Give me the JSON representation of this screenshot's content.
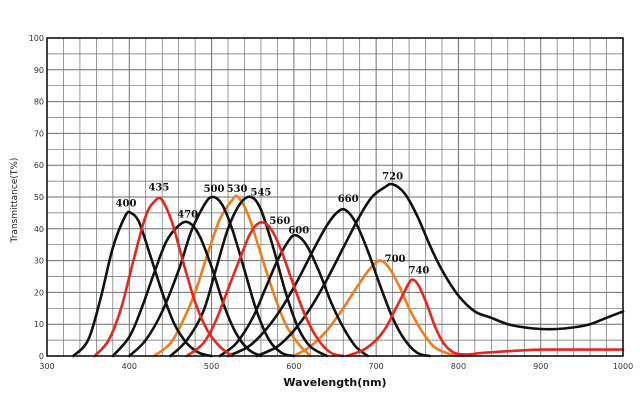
{
  "chart_data": {
    "type": "line",
    "title": "",
    "xlabel": "Wavelength(nm)",
    "ylabel": "Transmittance(T%)",
    "xlim": [
      300,
      1000
    ],
    "ylim": [
      0,
      100
    ],
    "grid": true,
    "x_ticks": [
      300,
      400,
      500,
      600,
      700,
      800,
      900,
      1000
    ],
    "y_ticks": [
      0,
      10,
      20,
      30,
      40,
      50,
      60,
      70,
      80,
      90,
      100
    ],
    "colors": {
      "black": "#111111",
      "red": "#e8261c",
      "orange": "#f07c1a",
      "grid": "#6e6e6e"
    },
    "series": [
      {
        "label": "400",
        "color": "black",
        "points": [
          [
            332,
            0
          ],
          [
            350,
            5
          ],
          [
            365,
            18
          ],
          [
            380,
            34
          ],
          [
            395,
            44
          ],
          [
            402,
            45
          ],
          [
            412,
            42
          ],
          [
            425,
            32
          ],
          [
            440,
            20
          ],
          [
            455,
            10
          ],
          [
            470,
            4
          ],
          [
            485,
            1
          ],
          [
            500,
            0
          ]
        ]
      },
      {
        "label": "435",
        "color": "red",
        "points": [
          [
            358,
            0
          ],
          [
            375,
            5
          ],
          [
            390,
            15
          ],
          [
            405,
            30
          ],
          [
            420,
            44
          ],
          [
            432,
            49
          ],
          [
            440,
            49
          ],
          [
            452,
            42
          ],
          [
            465,
            30
          ],
          [
            480,
            17
          ],
          [
            495,
            8
          ],
          [
            510,
            3
          ],
          [
            525,
            0
          ]
        ]
      },
      {
        "label": "470",
        "color": "black",
        "points": [
          [
            380,
            0
          ],
          [
            400,
            6
          ],
          [
            415,
            15
          ],
          [
            430,
            26
          ],
          [
            445,
            36
          ],
          [
            460,
            41
          ],
          [
            472,
            42
          ],
          [
            485,
            38
          ],
          [
            500,
            28
          ],
          [
            515,
            16
          ],
          [
            530,
            7
          ],
          [
            545,
            2
          ],
          [
            560,
            0
          ]
        ]
      },
      {
        "label": "500",
        "color": "black",
        "points": [
          [
            400,
            0
          ],
          [
            420,
            5
          ],
          [
            440,
            14
          ],
          [
            460,
            27
          ],
          [
            475,
            39
          ],
          [
            490,
            47
          ],
          [
            500,
            50
          ],
          [
            512,
            48
          ],
          [
            525,
            40
          ],
          [
            540,
            27
          ],
          [
            555,
            14
          ],
          [
            570,
            5
          ],
          [
            585,
            1
          ],
          [
            600,
            0
          ]
        ]
      },
      {
        "label": "530",
        "color": "orange",
        "points": [
          [
            430,
            0
          ],
          [
            450,
            4
          ],
          [
            465,
            11
          ],
          [
            480,
            20
          ],
          [
            495,
            32
          ],
          [
            510,
            43
          ],
          [
            525,
            49
          ],
          [
            532,
            50
          ],
          [
            545,
            44
          ],
          [
            560,
            32
          ],
          [
            575,
            20
          ],
          [
            590,
            10
          ],
          [
            605,
            4
          ],
          [
            620,
            0
          ]
        ]
      },
      {
        "label": "545",
        "color": "black",
        "points": [
          [
            450,
            0
          ],
          [
            470,
            5
          ],
          [
            490,
            14
          ],
          [
            505,
            27
          ],
          [
            520,
            40
          ],
          [
            535,
            48
          ],
          [
            548,
            50
          ],
          [
            560,
            46
          ],
          [
            575,
            34
          ],
          [
            590,
            20
          ],
          [
            605,
            9
          ],
          [
            620,
            3
          ],
          [
            640,
            0
          ]
        ]
      },
      {
        "label": "560",
        "color": "red",
        "points": [
          [
            470,
            0
          ],
          [
            490,
            4
          ],
          [
            505,
            11
          ],
          [
            520,
            21
          ],
          [
            535,
            31
          ],
          [
            548,
            39
          ],
          [
            560,
            42
          ],
          [
            572,
            40
          ],
          [
            585,
            33
          ],
          [
            600,
            22
          ],
          [
            615,
            12
          ],
          [
            630,
            5
          ],
          [
            645,
            1
          ],
          [
            660,
            0
          ]
        ]
      },
      {
        "label": "600",
        "color": "black",
        "points": [
          [
            510,
            0
          ],
          [
            530,
            4
          ],
          [
            550,
            12
          ],
          [
            565,
            21
          ],
          [
            580,
            30
          ],
          [
            593,
            36
          ],
          [
            602,
            38
          ],
          [
            615,
            35
          ],
          [
            630,
            27
          ],
          [
            645,
            17
          ],
          [
            660,
            9
          ],
          [
            675,
            3
          ],
          [
            690,
            0
          ]
        ]
      },
      {
        "label": "660",
        "color": "black",
        "points": [
          [
            520,
            0
          ],
          [
            545,
            3
          ],
          [
            565,
            8
          ],
          [
            585,
            15
          ],
          [
            605,
            24
          ],
          [
            625,
            34
          ],
          [
            640,
            41
          ],
          [
            652,
            45
          ],
          [
            662,
            46
          ],
          [
            675,
            42
          ],
          [
            690,
            33
          ],
          [
            705,
            22
          ],
          [
            720,
            12
          ],
          [
            735,
            5
          ],
          [
            750,
            1
          ],
          [
            765,
            0
          ]
        ]
      },
      {
        "label": "720",
        "color": "black",
        "points": [
          [
            555,
            0
          ],
          [
            580,
            3
          ],
          [
            600,
            8
          ],
          [
            620,
            15
          ],
          [
            640,
            24
          ],
          [
            660,
            34
          ],
          [
            680,
            44
          ],
          [
            695,
            50
          ],
          [
            710,
            53
          ],
          [
            720,
            54
          ],
          [
            735,
            51
          ],
          [
            750,
            44
          ],
          [
            765,
            35
          ],
          [
            780,
            27
          ],
          [
            800,
            19
          ],
          [
            820,
            14
          ],
          [
            840,
            12
          ],
          [
            860,
            10
          ],
          [
            880,
            9
          ],
          [
            900,
            8.5
          ],
          [
            920,
            8.5
          ],
          [
            940,
            9
          ],
          [
            960,
            10
          ],
          [
            980,
            12
          ],
          [
            1000,
            14
          ]
        ]
      },
      {
        "label": "700",
        "color": "orange",
        "points": [
          [
            600,
            0
          ],
          [
            620,
            3
          ],
          [
            640,
            8
          ],
          [
            660,
            15
          ],
          [
            675,
            21
          ],
          [
            688,
            26
          ],
          [
            698,
            29
          ],
          [
            705,
            30
          ],
          [
            715,
            28
          ],
          [
            728,
            22
          ],
          [
            740,
            15
          ],
          [
            755,
            8
          ],
          [
            770,
            3
          ],
          [
            785,
            1
          ],
          [
            800,
            0
          ]
        ]
      },
      {
        "label": "740",
        "color": "red",
        "points": [
          [
            665,
            0
          ],
          [
            685,
            2
          ],
          [
            700,
            5
          ],
          [
            712,
            9
          ],
          [
            722,
            14
          ],
          [
            732,
            19
          ],
          [
            740,
            23
          ],
          [
            745,
            24
          ],
          [
            752,
            22
          ],
          [
            762,
            16
          ],
          [
            772,
            9
          ],
          [
            782,
            4
          ],
          [
            795,
            1
          ],
          [
            810,
            0.5
          ],
          [
            830,
            1
          ],
          [
            860,
            1.5
          ],
          [
            900,
            2
          ],
          [
            930,
            2
          ],
          [
            960,
            2
          ],
          [
            1000,
            2
          ]
        ]
      }
    ],
    "peak_labels": [
      {
        "text": "400",
        "x": 396,
        "y": 47
      },
      {
        "text": "435",
        "x": 436,
        "y": 52
      },
      {
        "text": "470",
        "x": 471,
        "y": 43.5
      },
      {
        "text": "500",
        "x": 503,
        "y": 51.5
      },
      {
        "text": "530",
        "x": 531,
        "y": 51.5
      },
      {
        "text": "545",
        "x": 560,
        "y": 50.5
      },
      {
        "text": "560",
        "x": 583,
        "y": 41.5
      },
      {
        "text": "600",
        "x": 606,
        "y": 38.5
      },
      {
        "text": "660",
        "x": 666,
        "y": 48.5
      },
      {
        "text": "720",
        "x": 720,
        "y": 55.5
      },
      {
        "text": "700",
        "x": 723,
        "y": 29.5
      },
      {
        "text": "740",
        "x": 752,
        "y": 26
      }
    ]
  }
}
